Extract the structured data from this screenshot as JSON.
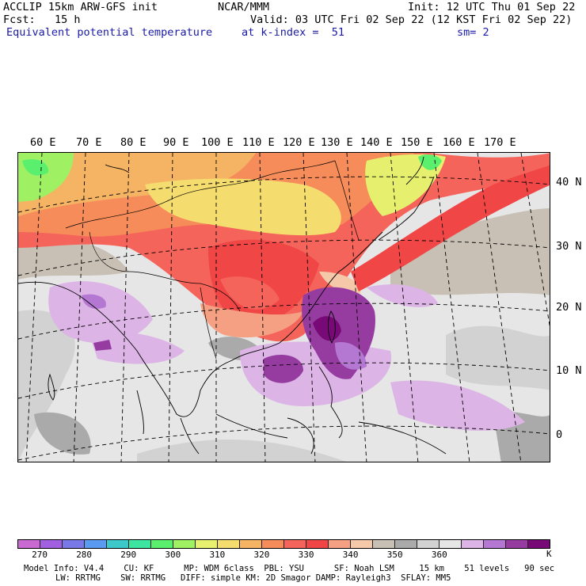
{
  "header": {
    "line1_left": "ACCLIP 15km ARW-GFS init",
    "line1_mid": "NCAR/MMM",
    "line1_right": "Init: 12 UTC Thu 01 Sep 22",
    "line2_left": "Fcst:   15 h",
    "line2_right": "Valid: 03 UTC Fri 02 Sep 22 (12 KST Fri 02 Sep 22)",
    "line3_left": "Equivalent potential temperature",
    "line3_mid": "at k-index =  51",
    "line3_right": "sm= 2"
  },
  "map": {
    "lon_labels": [
      "60 E",
      "70 E",
      "80 E",
      "90 E",
      "100 E",
      "110 E",
      "120 E",
      "130 E",
      "140 E",
      "150 E",
      "160 E",
      "170 E"
    ],
    "lat_labels": [
      "40 N",
      "30 N",
      "20 N",
      "10 N",
      "0"
    ]
  },
  "colorbar": {
    "colors": [
      "#c86ad2",
      "#a060e0",
      "#7878e6",
      "#5a9af0",
      "#3cc8c8",
      "#3ce6a0",
      "#5af06e",
      "#a0f064",
      "#e6f06e",
      "#f5dc6e",
      "#f5b464",
      "#f58c5a",
      "#f5645a",
      "#f04646",
      "#f5a082",
      "#f5c8aa",
      "#c8c0b4",
      "#aaaaaa",
      "#d2d2d2",
      "#e6e6e6",
      "#dcb4e6",
      "#b478d2",
      "#963ca0",
      "#780a78"
    ],
    "labels": [
      "270",
      "280",
      "290",
      "300",
      "310",
      "320",
      "330",
      "340",
      "350",
      "360"
    ],
    "unit": "K"
  },
  "footer": {
    "line1": "Model Info: V4.4    CU: KF      MP: WDM 6class  PBL: YSU      SF: Noah LSM     15 km    51 levels   90 sec",
    "line2": "LW: RRTMG    SW: RRTMG   DIFF: simple KM: 2D Smagor DAMP: Rayleigh3  SFLAY: MM5"
  }
}
